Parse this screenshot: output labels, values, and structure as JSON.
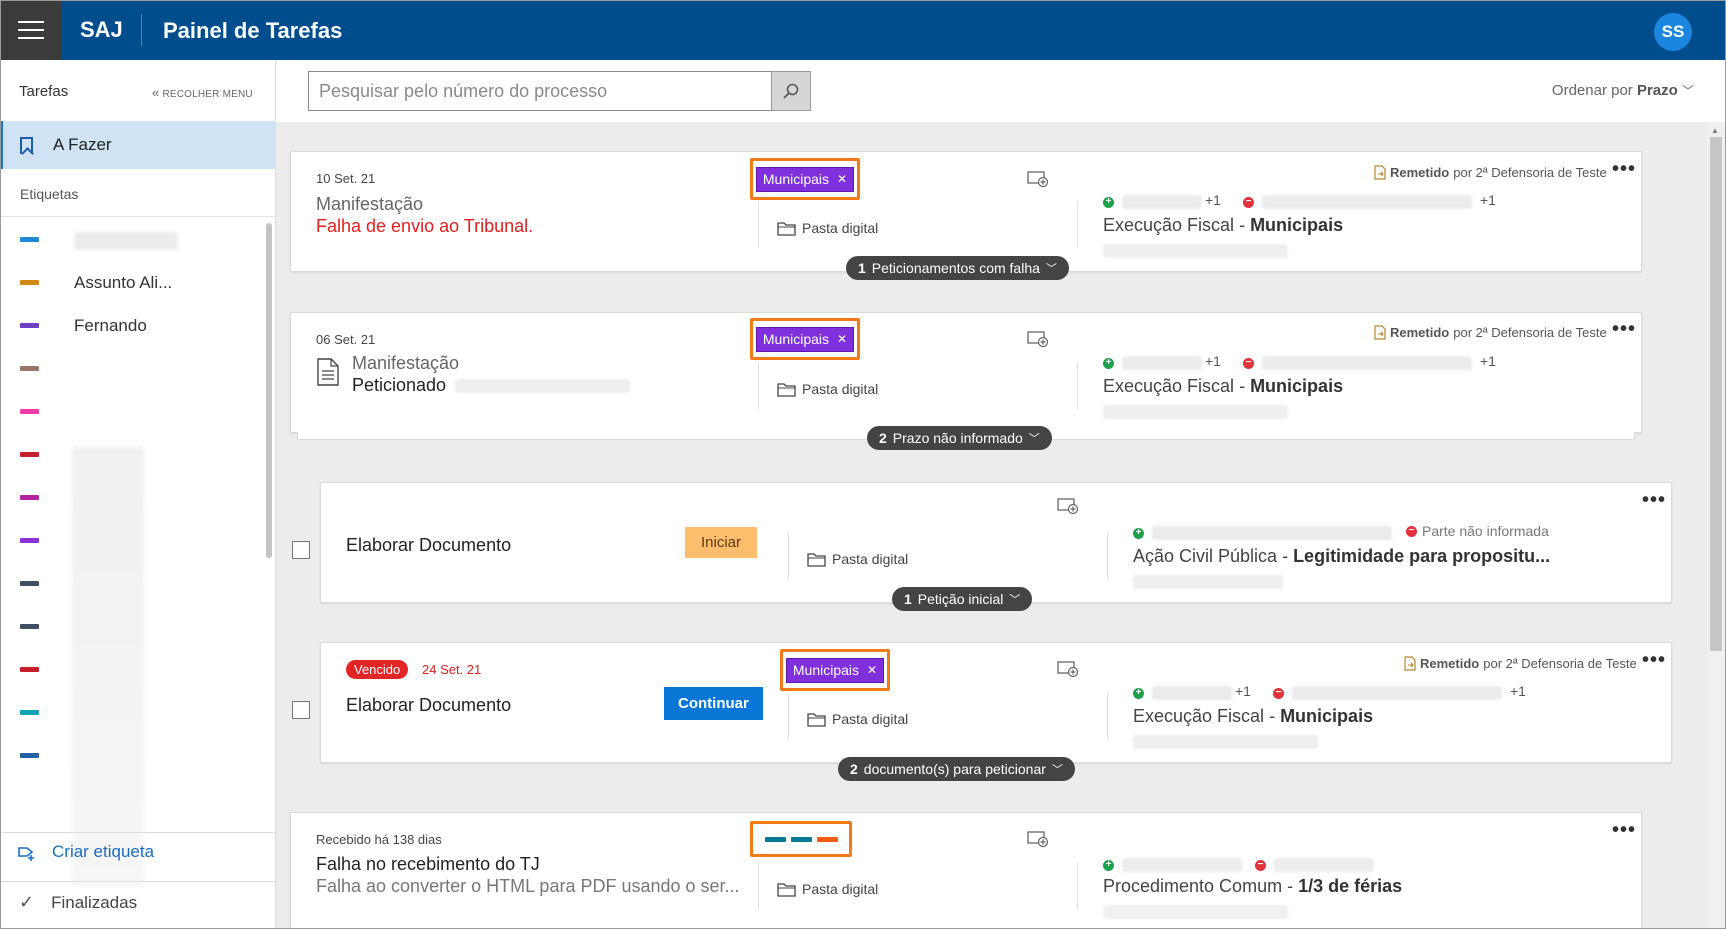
{
  "header": {
    "menu_icon": "hamburger-icon",
    "brand": "SAJ",
    "title": "Painel de Tarefas",
    "avatar": "SS"
  },
  "sidebar": {
    "heading": "Tarefas",
    "collapse_label": "RECOLHER MENU",
    "active_item": "A Fazer",
    "labels_heading": "Etiquetas",
    "tags": [
      {
        "name": "",
        "color": "#1e88d4"
      },
      {
        "name": "Assunto Ali...",
        "color": "#d38a12"
      },
      {
        "name": "Fernando",
        "color": "#6b3fc6"
      },
      {
        "name": "",
        "color": "#9a7466"
      },
      {
        "name": "",
        "color": "#ef3ba8"
      },
      {
        "name": "",
        "color": "#c51f2c"
      },
      {
        "name": "",
        "color": "#b4239f"
      },
      {
        "name": "",
        "color": "#8a32d6"
      },
      {
        "name": "",
        "color": "#3e4f63"
      },
      {
        "name": "",
        "color": "#3e4f63"
      },
      {
        "name": "",
        "color": "#c51f2c"
      },
      {
        "name": "",
        "color": "#12a4b4"
      },
      {
        "name": "",
        "color": "#2460a8"
      }
    ],
    "create_label": "Criar etiqueta",
    "finished_label": "Finalizadas"
  },
  "search": {
    "placeholder": "Pesquisar pelo número do processo",
    "value": ""
  },
  "order": {
    "prefix": "Ordenar por",
    "value": "Prazo"
  },
  "cards": [
    {
      "date": "10 Set. 21",
      "type": "Manifestação",
      "status": "Falha de envio ao Tribunal.",
      "tag": "Municipais",
      "folder": "Pasta digital",
      "remetido": "Remetido",
      "remetido_by": "por 2ª Defensoria de Teste",
      "plus_count": "+1",
      "minus_count": "+1",
      "process_class": "Execução Fiscal",
      "process_subject": "Municipais",
      "pill_count": "1",
      "pill_text": "Peticionamentos com falha"
    },
    {
      "date": "06 Set. 21",
      "type": "Manifestação",
      "status": "Peticionado",
      "tag": "Municipais",
      "folder": "Pasta digital",
      "remetido": "Remetido",
      "remetido_by": "por 2ª Defensoria de Teste",
      "plus_count": "+1",
      "minus_count": "+1",
      "process_class": "Execução Fiscal",
      "process_subject": "Municipais",
      "pill_count": "2",
      "pill_text": "Prazo não informado"
    },
    {
      "title": "Elaborar Documento",
      "button": "Iniciar",
      "folder": "Pasta digital",
      "parte": "Parte não informada",
      "process_class": "Ação Civil Pública",
      "process_subject": "Legitimidade para propositu...",
      "pill_count": "1",
      "pill_text": "Petição inicial"
    },
    {
      "badge": "Vencido",
      "date": "24 Set. 21",
      "title": "Elaborar Documento",
      "button": "Continuar",
      "tag": "Municipais",
      "folder": "Pasta digital",
      "remetido": "Remetido",
      "remetido_by": "por 2ª Defensoria de Teste",
      "plus_count": "+1",
      "minus_count": "+1",
      "process_class": "Execução Fiscal",
      "process_subject": "Municipais",
      "pill_count": "2",
      "pill_text": "documento(s) para peticionar"
    },
    {
      "date": "Recebido há 138 dias",
      "title": "Falha no recebimento do TJ",
      "subtitle": "Falha ao converter o HTML para PDF usando o ser...",
      "tag_colors": [
        "#0a7896",
        "#0a7896",
        "#f25c14"
      ],
      "folder": "Pasta digital",
      "process_class": "Procedimento Comum",
      "process_subject": "1/3 de férias"
    }
  ]
}
